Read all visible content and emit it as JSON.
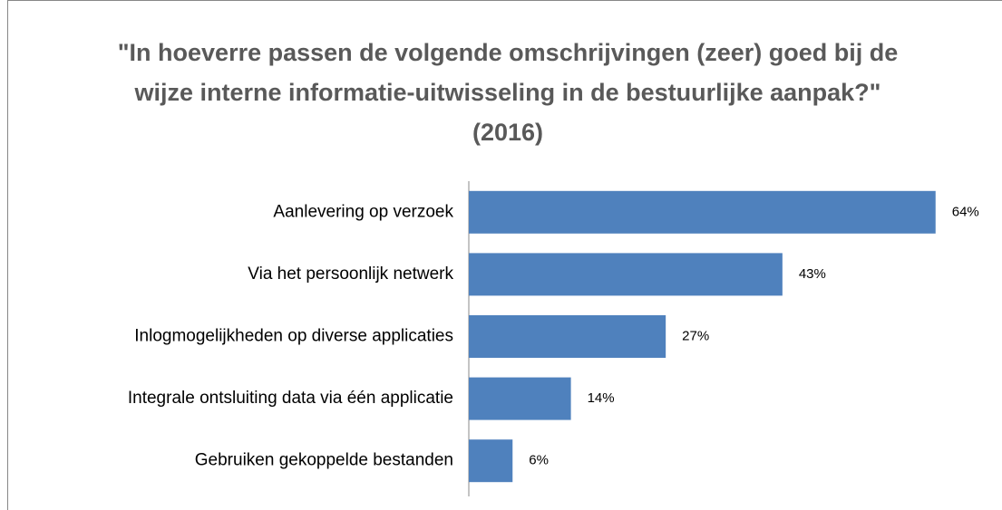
{
  "chart_data": {
    "type": "bar",
    "orientation": "horizontal",
    "title": "\"In hoeverre passen de volgende omschrijvingen (zeer) goed bij de wijze interne informatie-uitwisseling in de bestuurlijke aanpak?\" (2016)",
    "categories": [
      "Aanlevering op verzoek",
      "Via het persoonlijk netwerk",
      "Inlogmogelijkheden op diverse applicaties",
      "Integrale ontsluiting data via één applicatie",
      "Gebruiken gekoppelde bestanden"
    ],
    "values": [
      64,
      43,
      27,
      14,
      6
    ],
    "value_labels": [
      "64%",
      "43%",
      "27%",
      "14%",
      "6%"
    ],
    "color": "#4f81bd",
    "xlim": [
      0,
      70
    ]
  }
}
